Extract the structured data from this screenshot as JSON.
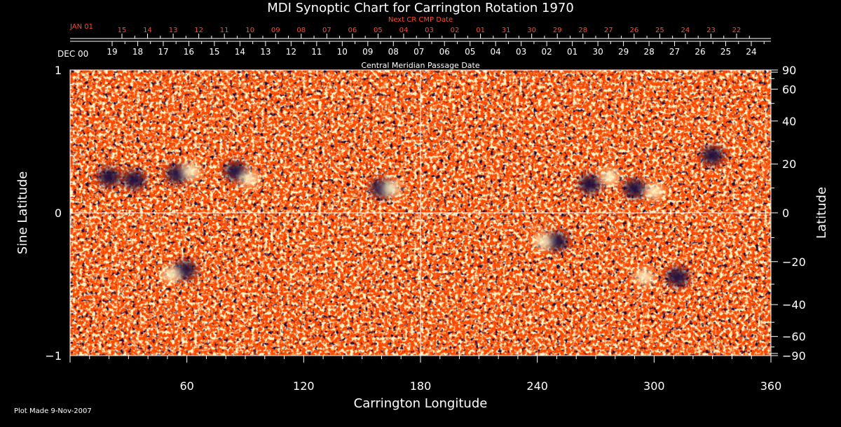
{
  "chart_data": {
    "type": "heatmap",
    "title": "MDI Synoptic Chart for Carrington Rotation 1970",
    "xlabel": "Carrington Longitude",
    "ylabel_left": "Sine Latitude",
    "ylabel_right": "Latitude",
    "xlim": [
      0,
      360
    ],
    "ylim": [
      -1,
      1
    ],
    "x_ticks": [
      60,
      120,
      180,
      240,
      300,
      360
    ],
    "y_ticks_left": [
      {
        "value": 1,
        "label": "1"
      },
      {
        "value": 0,
        "label": "0"
      },
      {
        "value": -1,
        "label": "−1"
      }
    ],
    "y_ticks_right_degrees": [
      {
        "value": 90,
        "label": "90"
      },
      {
        "value": 60,
        "label": "60"
      },
      {
        "value": 40,
        "label": "40"
      },
      {
        "value": 20,
        "label": "20"
      },
      {
        "value": 0,
        "label": "0"
      },
      {
        "value": -20,
        "label": "−20"
      },
      {
        "value": -40,
        "label": "−40"
      },
      {
        "value": -60,
        "label": "−60"
      },
      {
        "value": -90,
        "label": "−90"
      }
    ],
    "cmp_axis": {
      "title": "Central Meridian Passage Date",
      "first_label": "DEC 00",
      "labels": [
        "19",
        "18",
        "17",
        "16",
        "15",
        "14",
        "13",
        "12",
        "11",
        "10",
        "09",
        "08",
        "07",
        "06",
        "05",
        "04",
        "03",
        "02",
        "01",
        "30",
        "29",
        "28",
        "27",
        "26",
        "25",
        "24"
      ]
    },
    "next_cmp_axis": {
      "title": "Next CR CMP Date",
      "first_label": "JAN 01",
      "labels": [
        "15",
        "14",
        "13",
        "12",
        "11",
        "10",
        "09",
        "08",
        "07",
        "06",
        "05",
        "04",
        "03",
        "02",
        "01",
        "31",
        "30",
        "29",
        "28",
        "27",
        "26",
        "25",
        "24",
        "23",
        "22"
      ]
    },
    "colors": {
      "background": "#ff4a00",
      "positive_field": "#fff6c8",
      "negative_field": "#1a0a3c",
      "axes": "#ffffff",
      "next_axis": "#ff4a2a"
    },
    "active_regions": [
      {
        "lon": 20,
        "sinlat": 0.25,
        "polarity": "negative"
      },
      {
        "lon": 33,
        "sinlat": 0.23,
        "polarity": "negative"
      },
      {
        "lon": 55,
        "sinlat": 0.27,
        "polarity": "negative"
      },
      {
        "lon": 62,
        "sinlat": 0.29,
        "polarity": "positive"
      },
      {
        "lon": 85,
        "sinlat": 0.29,
        "polarity": "negative"
      },
      {
        "lon": 92,
        "sinlat": 0.24,
        "polarity": "positive"
      },
      {
        "lon": 160,
        "sinlat": 0.17,
        "polarity": "negative"
      },
      {
        "lon": 165,
        "sinlat": 0.17,
        "polarity": "positive"
      },
      {
        "lon": 59,
        "sinlat": -0.4,
        "polarity": "negative"
      },
      {
        "lon": 52,
        "sinlat": -0.43,
        "polarity": "positive"
      },
      {
        "lon": 250,
        "sinlat": -0.2,
        "polarity": "negative"
      },
      {
        "lon": 243,
        "sinlat": -0.2,
        "polarity": "positive"
      },
      {
        "lon": 267,
        "sinlat": 0.2,
        "polarity": "negative"
      },
      {
        "lon": 277,
        "sinlat": 0.25,
        "polarity": "positive"
      },
      {
        "lon": 290,
        "sinlat": 0.17,
        "polarity": "negative"
      },
      {
        "lon": 300,
        "sinlat": 0.15,
        "polarity": "positive"
      },
      {
        "lon": 330,
        "sinlat": 0.4,
        "polarity": "negative"
      },
      {
        "lon": 312,
        "sinlat": -0.45,
        "polarity": "negative"
      },
      {
        "lon": 295,
        "sinlat": -0.45,
        "polarity": "positive"
      }
    ]
  },
  "footer": {
    "plot_made": "Plot Made  9-Nov-2007"
  }
}
